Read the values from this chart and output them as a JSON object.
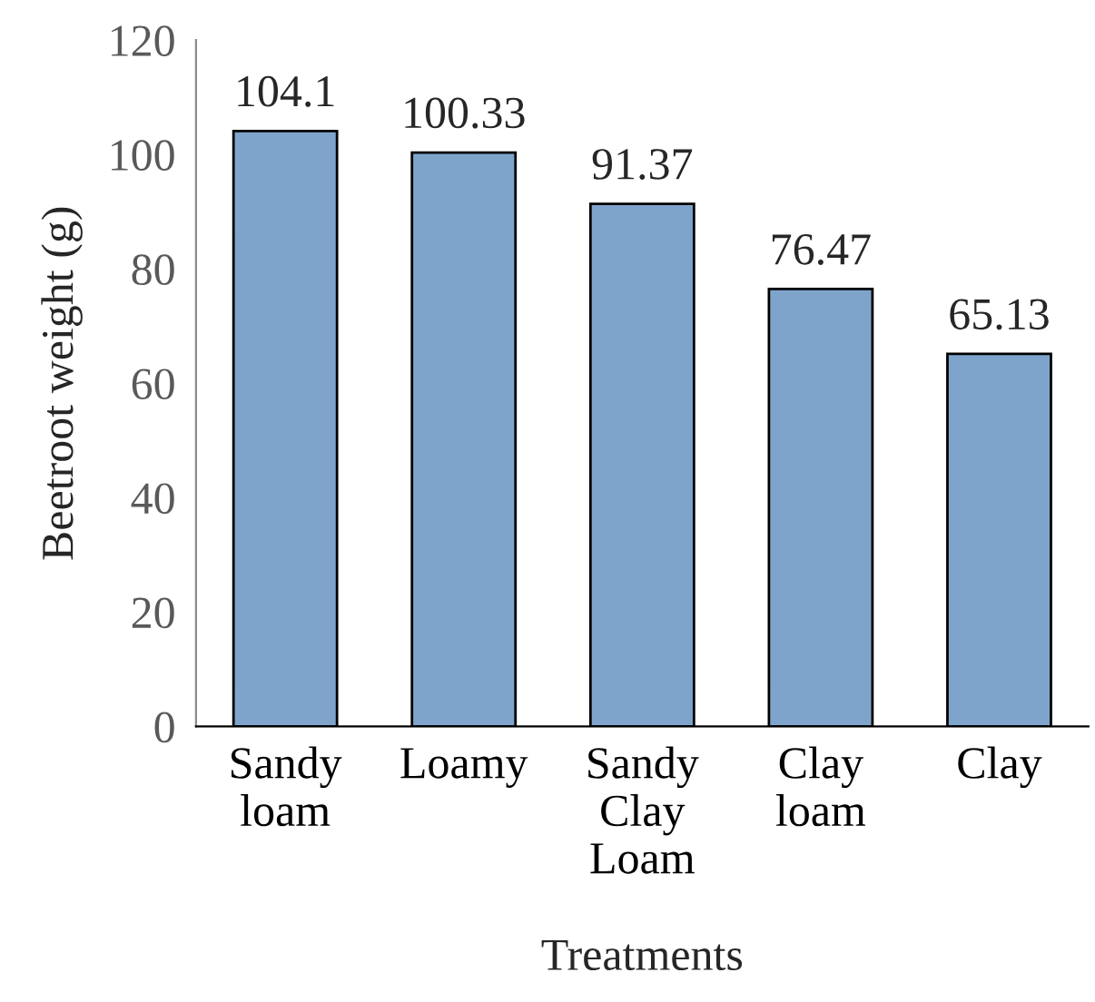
{
  "chart_data": {
    "type": "bar",
    "xlabel": "Treatments",
    "ylabel": "Beetroot weight (g)",
    "categories": [
      "Sandy\nloam",
      "Loamy",
      "Sandy\nClay\nLoam",
      "Clay\nloam",
      "Clay"
    ],
    "values": [
      104.1,
      100.33,
      91.37,
      76.47,
      65.13
    ],
    "color": "#7fa4cc",
    "ylim": [
      0,
      120
    ],
    "yticks": [
      0,
      20,
      40,
      60,
      80,
      100,
      120
    ],
    "data_labels": true,
    "grid": false,
    "legend": false
  }
}
